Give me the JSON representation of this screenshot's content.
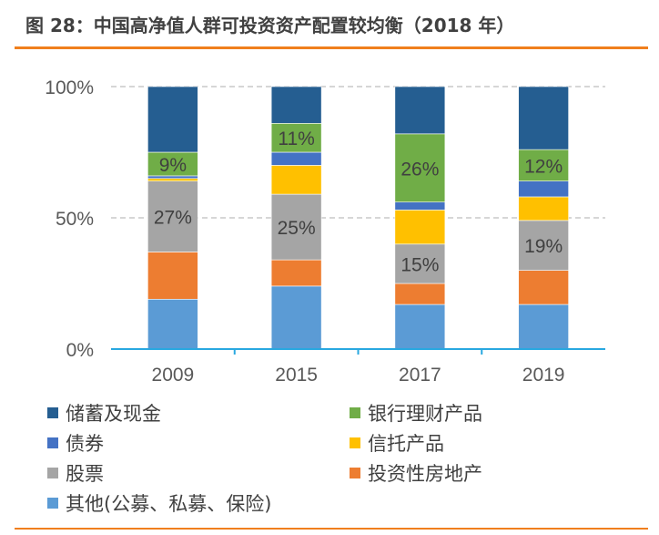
{
  "title": "图 28：中国高净值人群可投资资产配置较均衡（2018 年）",
  "chart_data": {
    "type": "bar",
    "stacked": true,
    "categories": [
      "2009",
      "2015",
      "2017",
      "2019"
    ],
    "yticks": [
      "0%",
      "50%",
      "100%"
    ],
    "ylim": [
      0,
      100
    ],
    "grid": "dashed horizontal at 50% and 100%",
    "legend_placement": "bottom",
    "series": [
      {
        "name": "其他(公募、私募、保险)",
        "color": "#5b9bd5",
        "values": [
          19,
          24,
          17,
          17
        ]
      },
      {
        "name": "投资性房地产",
        "color": "#ed7d31",
        "values": [
          18,
          10,
          8,
          13
        ]
      },
      {
        "name": "股票",
        "color": "#a5a5a5",
        "values": [
          27,
          25,
          15,
          19
        ],
        "labels": [
          "27%",
          "25%",
          "15%",
          "19%"
        ]
      },
      {
        "name": "信托产品",
        "color": "#ffc000",
        "values": [
          1,
          11,
          13,
          9
        ]
      },
      {
        "name": "债券",
        "color": "#4472c4",
        "values": [
          1,
          5,
          3,
          6
        ]
      },
      {
        "name": "银行理财产品",
        "color": "#70ad47",
        "values": [
          9,
          11,
          26,
          12
        ],
        "labels": [
          "9%",
          "11%",
          "26%",
          "12%"
        ]
      },
      {
        "name": "储蓄及现金",
        "color": "#255e91",
        "values": [
          25,
          14,
          18,
          24
        ]
      }
    ]
  },
  "legend_order": [
    6,
    5,
    4,
    3,
    2,
    1,
    0
  ]
}
